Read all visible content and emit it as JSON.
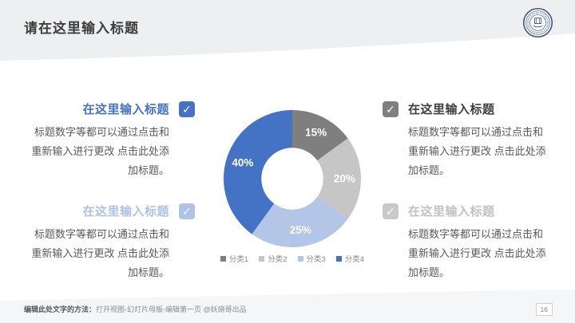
{
  "slide": {
    "title": "请在这里输入标题",
    "page_number": "16",
    "footer": {
      "method_label": "编辑此处文字的方法：",
      "method_text": "打开视图-幻灯片母版-编辑第一页 @妖娆哥出品"
    }
  },
  "icons": {
    "check": "✓"
  },
  "colors": {
    "accent_blue": "#4472C4",
    "accent_light_blue": "#AEC3E8",
    "accent_dark_gray": "#7F7F7F",
    "accent_light_gray": "#C6C6C6",
    "body_text": "#595959",
    "header_band": "#eeeff1",
    "footer_band": "#f5f6f8"
  },
  "blocks": [
    {
      "position": "top-left",
      "title": "在这里输入标题",
      "body": "标题数字等都可以通过点击和重新输入进行更改 点击此处添加标题。",
      "title_color": "#4472C4",
      "checkbox_color": "#4472C4"
    },
    {
      "position": "bottom-left",
      "title": "在这里输入标题",
      "body": "标题数字等都可以通过点击和重新输入进行更改 点击此处添加标题。",
      "title_color": "#AEC3E8",
      "checkbox_color": "#AEC3E8"
    },
    {
      "position": "top-right",
      "title": "在这里输入标题",
      "body": "标题数字等都可以通过点击和重新输入进行更改 点击此处添加标题。",
      "title_color": "#3f3f3f",
      "checkbox_color": "#7F7F7F"
    },
    {
      "position": "bottom-right",
      "title": "在这里输入标题",
      "body": "标题数字等都可以通过点击和重新输入进行更改 点击此处添加标题。",
      "title_color": "#C2C2C2",
      "checkbox_color": "#C9C9C9"
    }
  ],
  "chart_data": {
    "type": "pie",
    "subtype": "donut",
    "labels": [
      "分类1",
      "分类2",
      "分类3",
      "分类4"
    ],
    "values": [
      15,
      20,
      25,
      40
    ],
    "data_labels": [
      "15%",
      "20%",
      "25%",
      "40%"
    ],
    "colors": [
      "#7F7F7F",
      "#C6C6C6",
      "#B3C6E7",
      "#4472C4"
    ],
    "start_angle_deg": 0,
    "direction": "clockwise",
    "donut_hole_ratio": 0.45,
    "legend_position": "bottom",
    "data_label_color": "#FFFFFF"
  }
}
